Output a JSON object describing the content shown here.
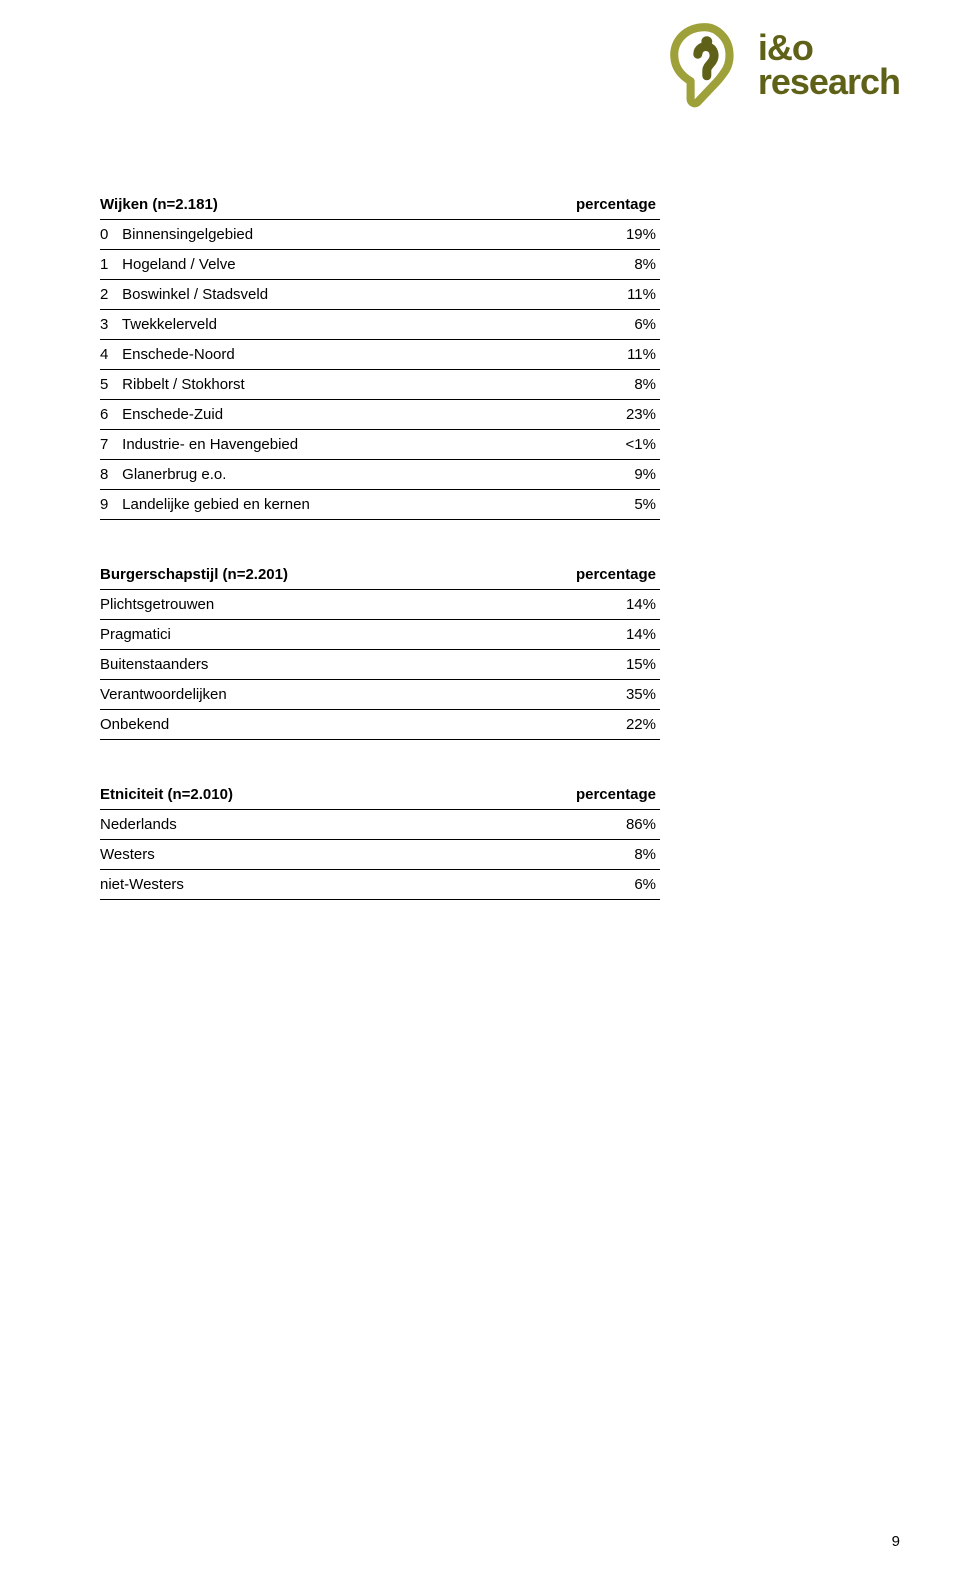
{
  "logo": {
    "line1": "i&o",
    "line2": "research",
    "mark_color_outer": "#9ea03a",
    "mark_color_inner": "#5e6117",
    "text_color": "#5e6117"
  },
  "tables": {
    "wijken": {
      "header_left": "Wijken (n=2.181)",
      "header_right": "percentage",
      "rows": [
        {
          "n": "0",
          "label": "Binnensingelgebied",
          "val": "19%"
        },
        {
          "n": "1",
          "label": "Hogeland / Velve",
          "val": "8%"
        },
        {
          "n": "2",
          "label": "Boswinkel / Stadsveld",
          "val": "11%"
        },
        {
          "n": "3",
          "label": "Twekkelerveld",
          "val": "6%"
        },
        {
          "n": "4",
          "label": "Enschede-Noord",
          "val": "11%"
        },
        {
          "n": "5",
          "label": "Ribbelt / Stokhorst",
          "val": "8%"
        },
        {
          "n": "6",
          "label": "Enschede-Zuid",
          "val": "23%"
        },
        {
          "n": "7",
          "label": "Industrie- en Havengebied",
          "val": "<1%"
        },
        {
          "n": "8",
          "label": "Glanerbrug e.o.",
          "val": "9%"
        },
        {
          "n": "9",
          "label": "Landelijke gebied en kernen",
          "val": "5%"
        }
      ]
    },
    "burgerschapstijl": {
      "header_left": "Burgerschapstijl (n=2.201)",
      "header_right": "percentage",
      "rows": [
        {
          "label": "Plichtsgetrouwen",
          "val": "14%"
        },
        {
          "label": "Pragmatici",
          "val": "14%"
        },
        {
          "label": "Buitenstaanders",
          "val": "15%"
        },
        {
          "label": "Verantwoordelijken",
          "val": "35%"
        },
        {
          "label": "Onbekend",
          "val": "22%"
        }
      ]
    },
    "etniciteit": {
      "header_left": "Etniciteit (n=2.010)",
      "header_right": "percentage",
      "rows": [
        {
          "label": "Nederlands",
          "val": "86%"
        },
        {
          "label": "Westers",
          "val": "8%"
        },
        {
          "label": "niet-Westers",
          "val": "6%"
        }
      ]
    }
  },
  "page_number": "9"
}
